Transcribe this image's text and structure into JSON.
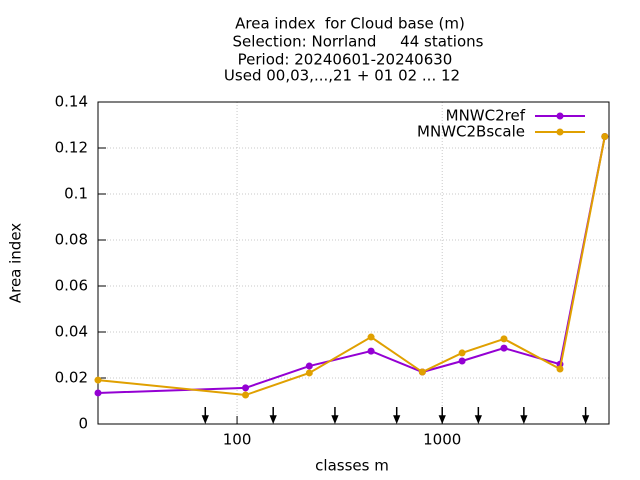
{
  "chart_data": {
    "type": "line",
    "title_lines": [
      "Area index  for Cloud base (m)",
      "Selection: Norrland     44 stations",
      "Period: 20240601-20240630",
      "Used 00,03,...,21 + 01 02 ... 12"
    ],
    "x_label": "classes m",
    "y_label": "Area index",
    "x": [
      21,
      110,
      225,
      450,
      800,
      1250,
      2000,
      3750,
      6200
    ],
    "series": [
      {
        "name": "MNWC2ref",
        "color": "#9400d3",
        "values": [
          0.0135,
          0.0157,
          0.0252,
          0.0317,
          0.0226,
          0.0274,
          0.033,
          0.026,
          0.125
        ]
      },
      {
        "name": "MNWC2Bscale",
        "color": "#e0a000",
        "values": [
          0.0191,
          0.0126,
          0.0222,
          0.0378,
          0.0226,
          0.0309,
          0.037,
          0.0239,
          0.125
        ]
      }
    ],
    "boundary_arrows": [
      70,
      150,
      300,
      600,
      1000,
      1500,
      2500,
      5000
    ],
    "xlim": [
      21,
      6500
    ],
    "xticks": [
      100,
      1000
    ],
    "xlog": true,
    "ylim": [
      0,
      0.14
    ],
    "yticks": [
      0,
      0.02,
      0.04,
      0.06,
      0.08,
      0.1,
      0.12,
      0.14
    ],
    "grid": true,
    "legend": "top-right"
  }
}
